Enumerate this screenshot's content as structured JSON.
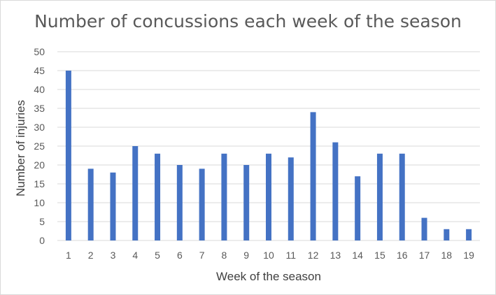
{
  "chart_data": {
    "type": "bar",
    "title": "Number of concussions each week of the season",
    "xlabel": "Week of the season",
    "ylabel": "Number of injuries",
    "categories": [
      "1",
      "2",
      "3",
      "4",
      "5",
      "6",
      "7",
      "8",
      "9",
      "10",
      "11",
      "12",
      "13",
      "14",
      "15",
      "16",
      "17",
      "18",
      "19"
    ],
    "values": [
      45,
      19,
      18,
      25,
      23,
      20,
      19,
      23,
      20,
      23,
      22,
      34,
      26,
      17,
      23,
      23,
      6,
      3,
      3
    ],
    "ylim": [
      0,
      50
    ],
    "yticks": [
      0,
      5,
      10,
      15,
      20,
      25,
      30,
      35,
      40,
      45,
      50
    ],
    "grid": true,
    "bar_color": "#4472c4",
    "gridline_color": "#d9d9d9"
  }
}
